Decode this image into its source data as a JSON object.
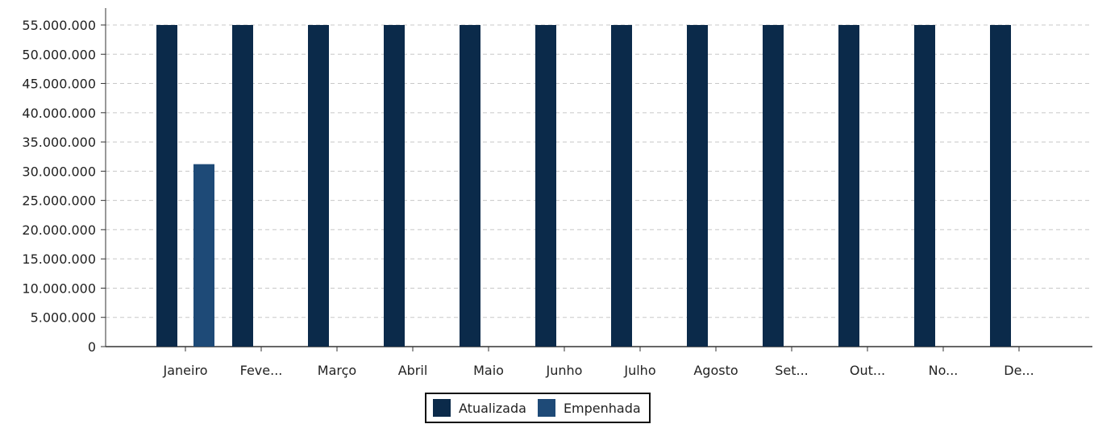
{
  "chart_data": {
    "type": "bar",
    "categories": [
      "Janeiro",
      "Feve...",
      "Março",
      "Abril",
      "Maio",
      "Junho",
      "Julho",
      "Agosto",
      "Set...",
      "Out...",
      "No...",
      "De..."
    ],
    "series": [
      {
        "name": "Atualizada",
        "color": "#0b2a4a",
        "values": [
          55000000,
          55000000,
          55000000,
          55000000,
          55000000,
          55000000,
          55000000,
          55000000,
          55000000,
          55000000,
          55000000,
          55000000
        ]
      },
      {
        "name": "Empenhada",
        "color": "#1e4a77",
        "values": [
          31200000,
          0,
          0,
          0,
          0,
          0,
          0,
          0,
          0,
          0,
          0,
          0
        ]
      }
    ],
    "yticks": [
      "0",
      "5.000.000",
      "10.000.000",
      "15.000.000",
      "20.000.000",
      "25.000.000",
      "30.000.000",
      "35.000.000",
      "40.000.000",
      "45.000.000",
      "50.000.000",
      "55.000.000"
    ],
    "ylim": [
      0,
      55000000
    ],
    "grid": true,
    "legend_position": "bottom-center"
  }
}
